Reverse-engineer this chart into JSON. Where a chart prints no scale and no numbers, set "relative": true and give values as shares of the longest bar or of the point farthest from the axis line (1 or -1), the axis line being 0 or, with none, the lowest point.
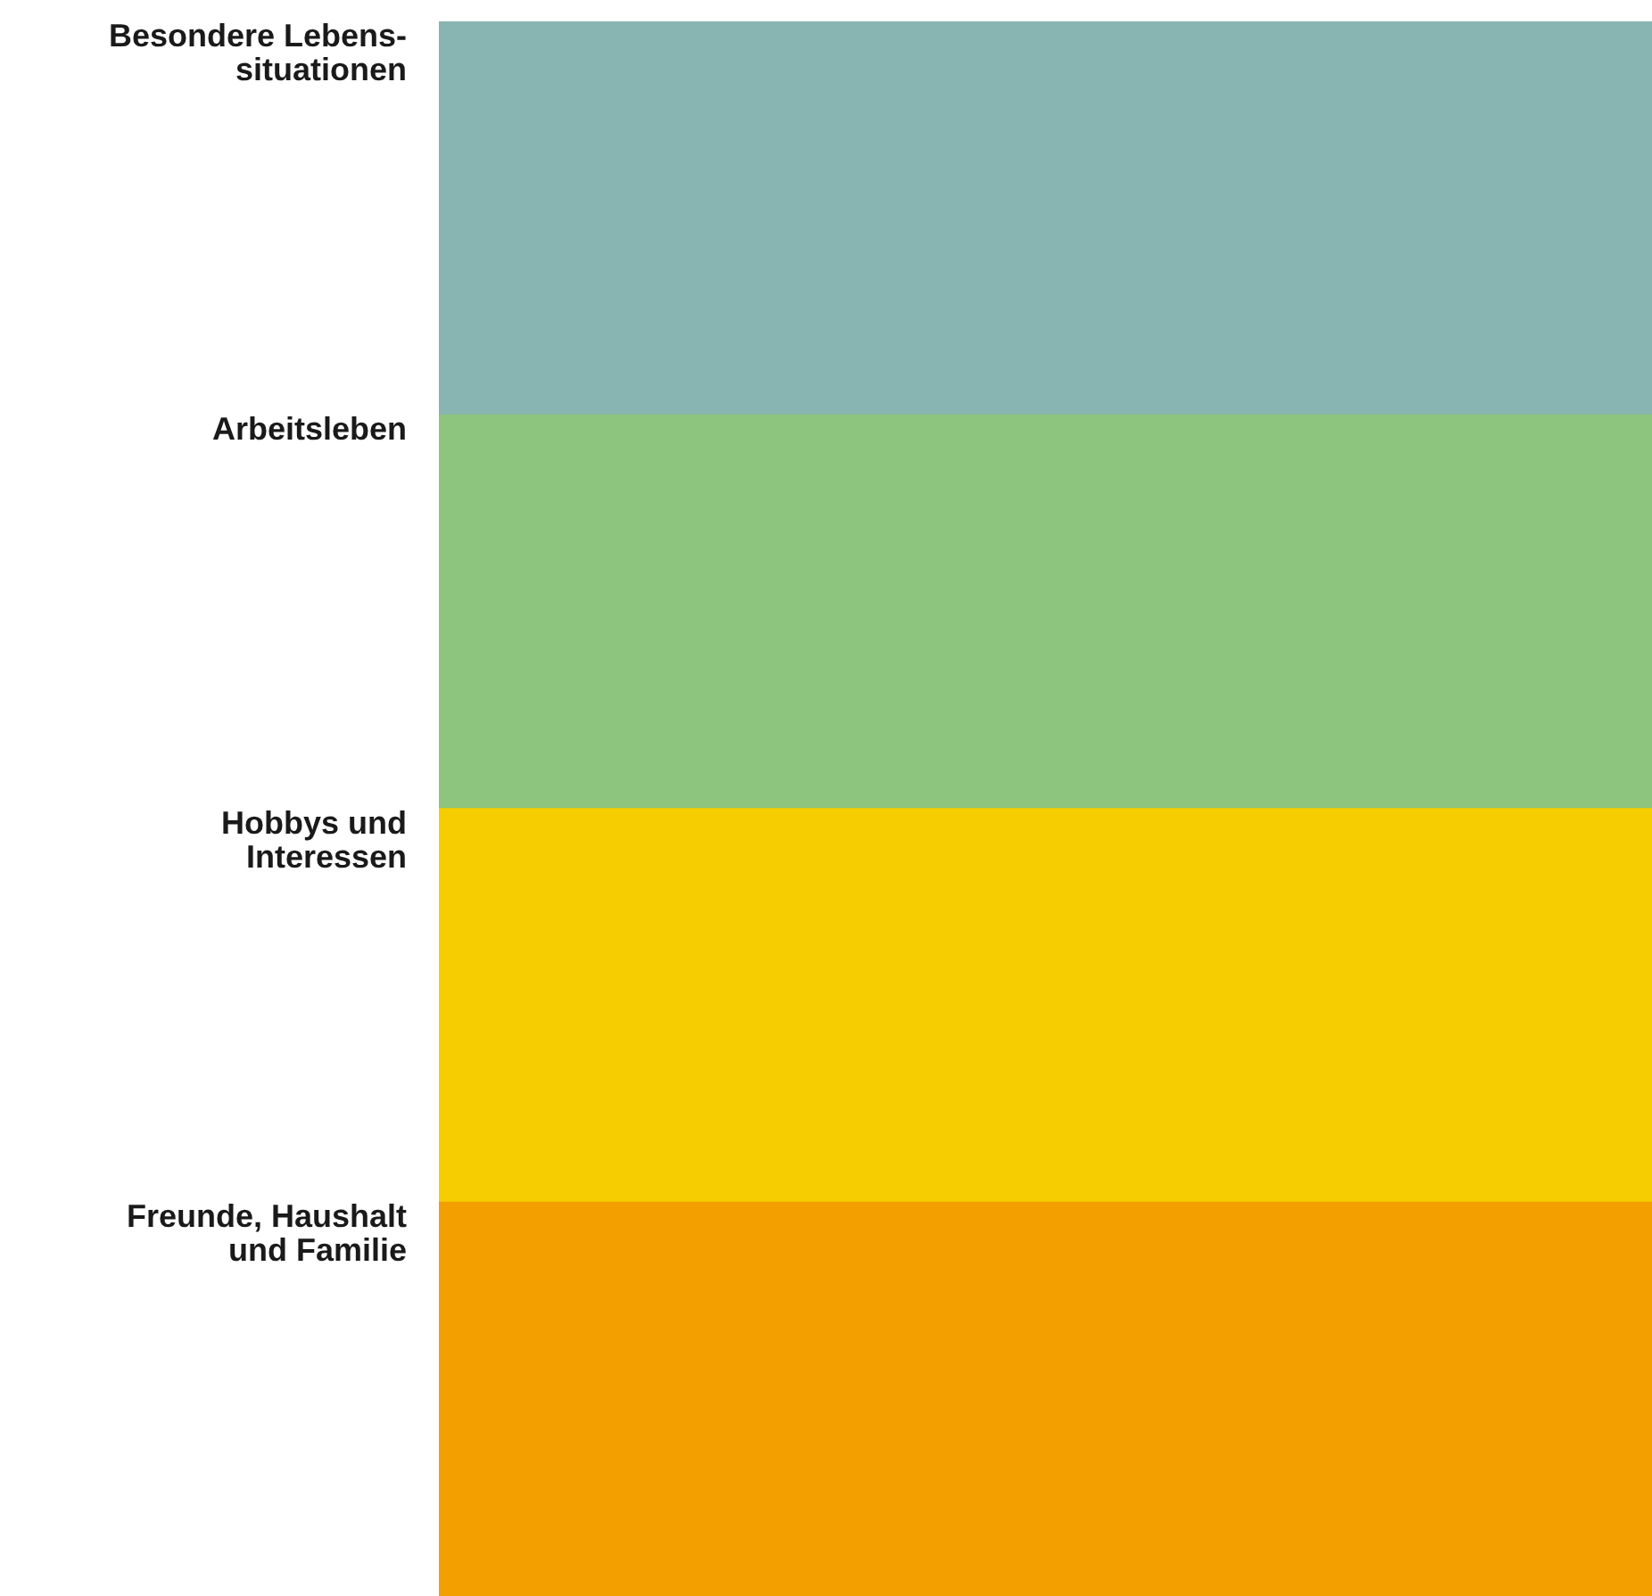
{
  "chart_data": {
    "type": "bar",
    "orientation": "horizontal",
    "relative": true,
    "categories": [
      "Besondere Lebens-\nsituationen",
      "Arbeitsleben",
      "Hobbys und\nInteressen",
      "Freunde, Haushalt\nund Familie"
    ],
    "values": [
      1,
      1,
      1,
      1
    ],
    "colors": [
      "#88b4b1",
      "#8dc47e",
      "#f5cd00",
      "#f39f00"
    ],
    "legend": false
  }
}
